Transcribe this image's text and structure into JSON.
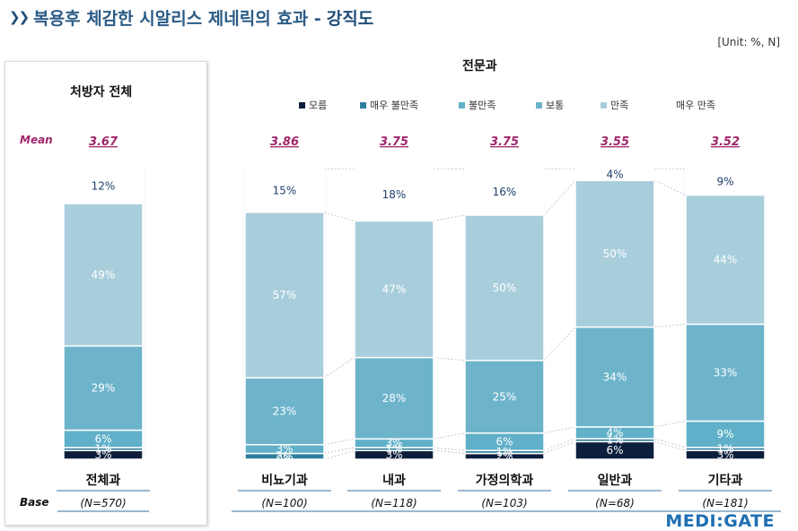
{
  "title": {
    "main": "복용후 체감한 시알리스 제네릭의 효과 -",
    "highlight": "강직도"
  },
  "unit": "[Unit: %, N]",
  "left_header": "처방자 전체",
  "specialty_header": "전문과",
  "mean_label": "Mean",
  "base_label": "Base",
  "logo": {
    "part1": "MEDI",
    "colon": ":",
    "part2": "GATE"
  },
  "legend": [
    {
      "label": "모름",
      "color": "#0d1f3c"
    },
    {
      "label": "매우 불만족",
      "color": "#2e7f9e"
    },
    {
      "label": "불만족",
      "color": "#5fb0c8"
    },
    {
      "label": "보통",
      "color": "#6db4cb"
    },
    {
      "label": "만족",
      "color": "#a8cedc"
    },
    {
      "label": "매우 만족",
      "color": "#ffffff"
    }
  ],
  "chart_data": {
    "type": "stacked-bar",
    "stack_order_bottom_to_top": [
      "모름",
      "매우 불만족",
      "불만족",
      "보통",
      "만족",
      "매우 만족"
    ],
    "categories": [
      {
        "name": "전체과",
        "n": "(N=570)",
        "mean": "3.67",
        "values": [
          3,
          1,
          6,
          29,
          49,
          12
        ],
        "labels": [
          "3%",
          "1%",
          "6%",
          "29%",
          "49%",
          "12%"
        ]
      },
      {
        "name": "비뇨기과",
        "n": "(N=100)",
        "mean": "3.86",
        "values": [
          0,
          2,
          3,
          23,
          57,
          15
        ],
        "labels": [
          "0%",
          "2%",
          "3%",
          "23%",
          "57%",
          "15%"
        ]
      },
      {
        "name": "내과",
        "n": "(N=118)",
        "mean": "3.75",
        "values": [
          3,
          1,
          3,
          28,
          47,
          18
        ],
        "labels": [
          "3%",
          "1%",
          "3%",
          "28%",
          "47%",
          "18%"
        ]
      },
      {
        "name": "가정의학과",
        "n": "(N=103)",
        "mean": "3.75",
        "values": [
          2,
          1,
          6,
          25,
          50,
          16
        ],
        "labels": [
          "2%",
          "1%",
          "6%",
          "25%",
          "50%",
          "16%"
        ]
      },
      {
        "name": "일반과",
        "n": "(N=68)",
        "mean": "3.55",
        "values": [
          6,
          1,
          4,
          34,
          50,
          4
        ],
        "labels": [
          "6%",
          "1%",
          "4%",
          "34%",
          "50%",
          "4%"
        ]
      },
      {
        "name": "기타과",
        "n": "(N=181)",
        "mean": "3.52",
        "values": [
          3,
          1,
          9,
          33,
          44,
          9
        ],
        "labels": [
          "3%",
          "1%",
          "9%",
          "33%",
          "44%",
          "9%"
        ]
      }
    ],
    "ylim": [
      0,
      100
    ]
  }
}
